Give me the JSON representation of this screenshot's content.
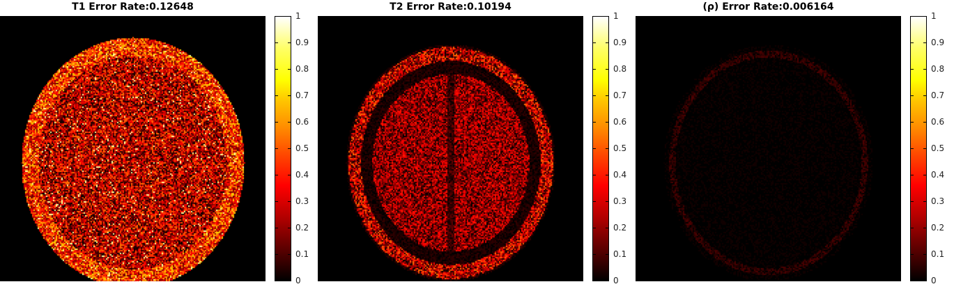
{
  "panels": [
    {
      "title": "T1 Error Rate:0.12648",
      "colormap": "hot",
      "clim": [
        0,
        1
      ]
    },
    {
      "title": "T2 Error Rate:0.10194",
      "colormap": "hot",
      "clim": [
        0,
        1
      ]
    },
    {
      "title": "(ρ) Error Rate:0.006164",
      "colormap": "hot",
      "clim": [
        0,
        1
      ]
    }
  ],
  "colorbar_ticks": [
    "0",
    "0.1",
    "0.2",
    "0.3",
    "0.4",
    "0.5",
    "0.6",
    "0.7",
    "0.8",
    "0.9",
    "1"
  ],
  "colormap_colors": [
    "#000000",
    "#6a0000",
    "#ff0000",
    "#ff8c00",
    "#ffff00",
    "#ffffff"
  ]
}
